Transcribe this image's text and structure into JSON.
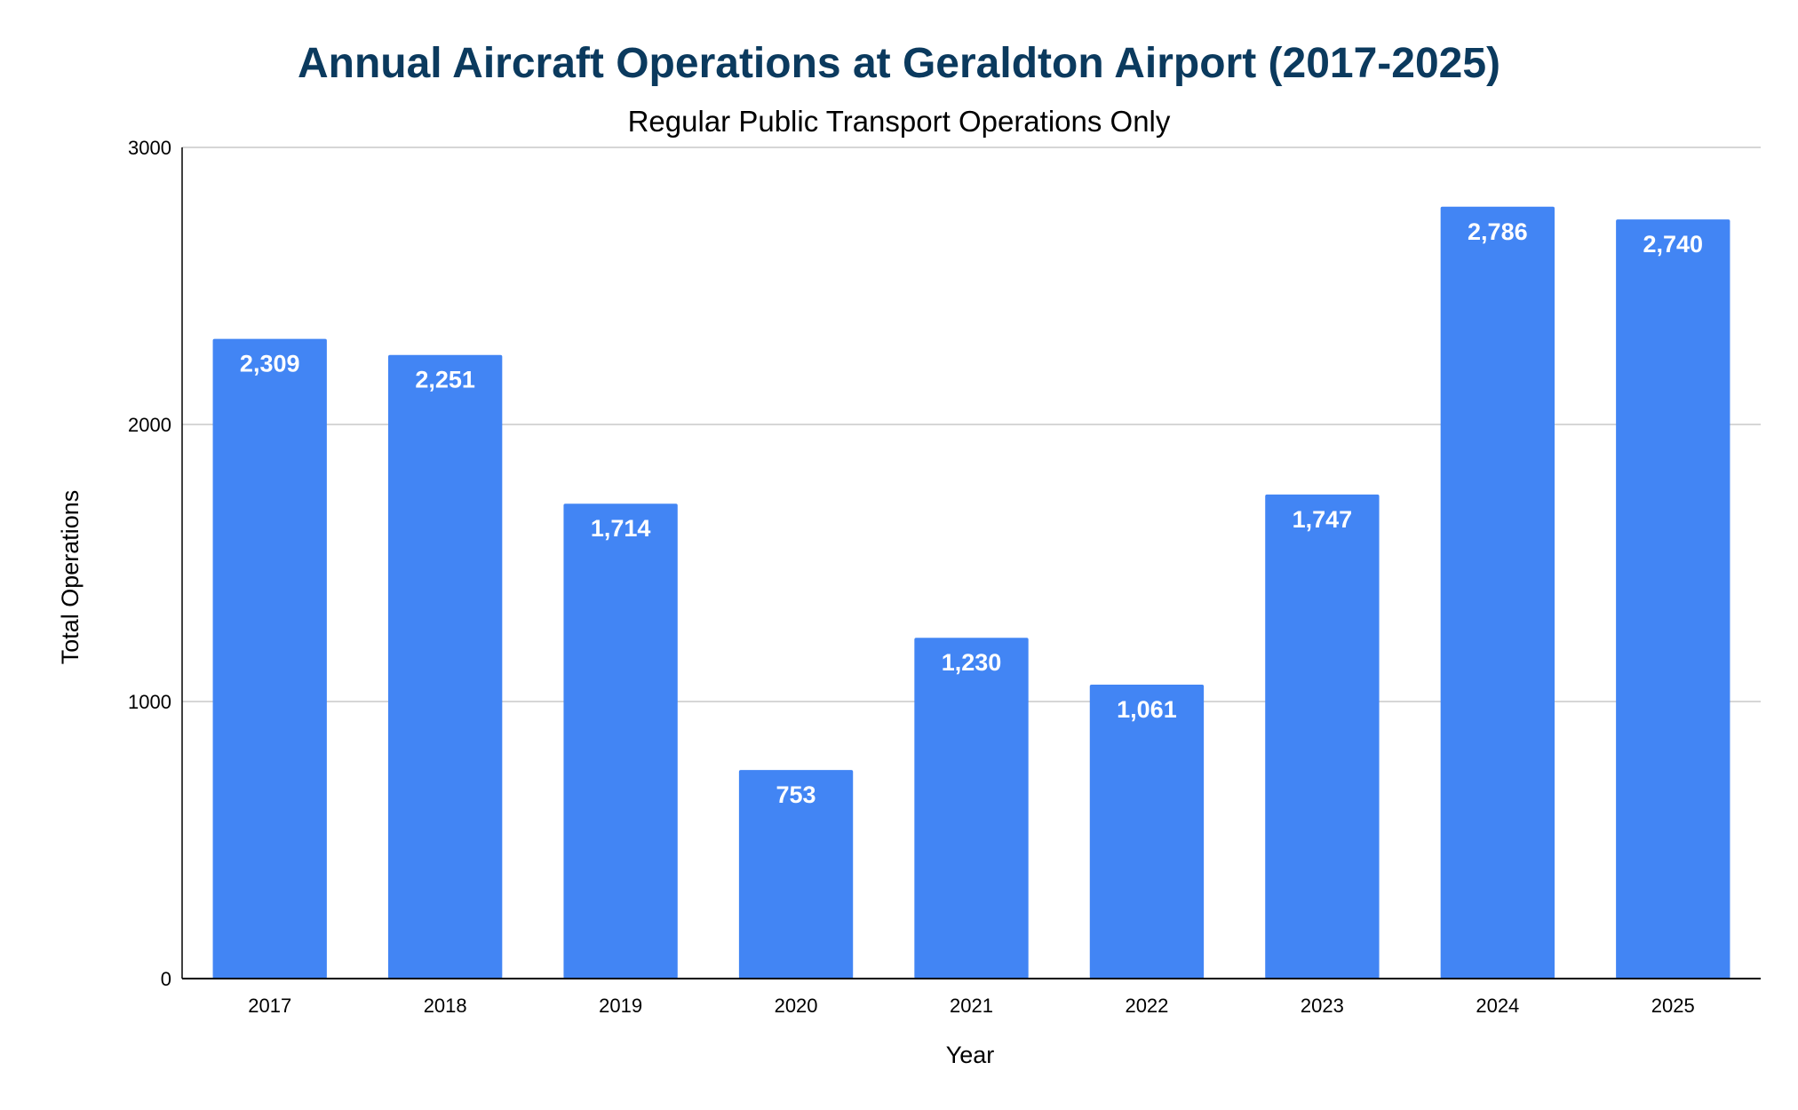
{
  "chart_data": {
    "type": "bar",
    "title": "Annual Aircraft Operations at Geraldton Airport (2017-2025)",
    "subtitle": "Regular Public Transport Operations Only",
    "xlabel": "Year",
    "ylabel": "Total Operations",
    "categories": [
      "2017",
      "2018",
      "2019",
      "2020",
      "2021",
      "2022",
      "2023",
      "2024",
      "2025"
    ],
    "values": [
      2309,
      2251,
      1714,
      753,
      1230,
      1061,
      1747,
      2786,
      2740
    ],
    "data_labels": [
      "2,309",
      "2,251",
      "1,714",
      "753",
      "1,230",
      "1,061",
      "1,747",
      "2,786",
      "2,740"
    ],
    "ylim": [
      0,
      3000
    ],
    "yticks": [
      0,
      1000,
      2000,
      3000
    ],
    "ytick_labels": [
      "0",
      "1000",
      "2000",
      "3000"
    ],
    "grid": true,
    "legend": "none",
    "colors": {
      "bar": "#4285F4",
      "title": "#0B3A5E",
      "grid": "#C8C8C8",
      "axis": "#000000",
      "data_label": "#FFFFFF"
    }
  }
}
